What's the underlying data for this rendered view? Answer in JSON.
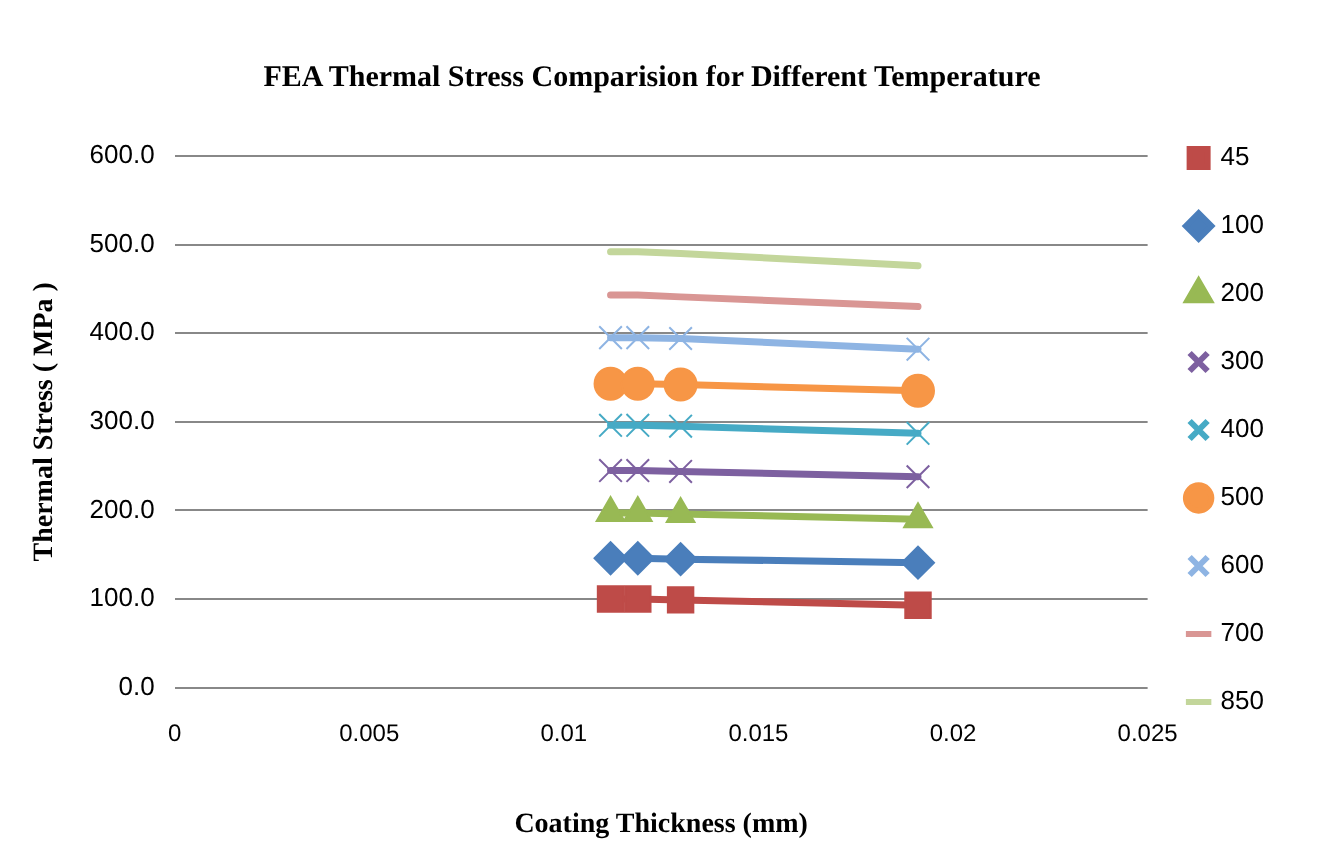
{
  "chart_data": {
    "type": "line",
    "title": "FEA Thermal Stress Comparision for Different Temperature",
    "xlabel": "Coating Thickness (mm)",
    "ylabel": "Thermal Stress ( MPa )",
    "x": [
      0.0112,
      0.0119,
      0.013,
      0.0191
    ],
    "xlim": [
      0,
      0.025
    ],
    "xticks": [
      0,
      0.005,
      0.01,
      0.015,
      0.02,
      0.025
    ],
    "ylim": [
      0,
      600
    ],
    "yticks": [
      {
        "value": 0,
        "label": "0.0"
      },
      {
        "value": 100,
        "label": "100.0"
      },
      {
        "value": 200,
        "label": "200.0"
      },
      {
        "value": 300,
        "label": "300.0"
      },
      {
        "value": 400,
        "label": "400.0"
      },
      {
        "value": 500,
        "label": "500.0"
      },
      {
        "value": 600,
        "label": "600.0"
      }
    ],
    "grid": "y",
    "legend": "right",
    "line_style": "solid",
    "series": [
      {
        "name": "45",
        "color": "#be4b48",
        "marker": "square",
        "values": [
          100,
          100,
          99,
          93
        ]
      },
      {
        "name": "100",
        "color": "#4a7ebb",
        "marker": "diamond",
        "values": [
          146,
          146,
          145,
          141
        ]
      },
      {
        "name": "200",
        "color": "#98b954",
        "marker": "triangle",
        "values": [
          197,
          197,
          196,
          190
        ]
      },
      {
        "name": "300",
        "color": "#7d60a0",
        "marker": "cross",
        "values": [
          245,
          245,
          244,
          238
        ]
      },
      {
        "name": "400",
        "color": "#46aac5",
        "marker": "cross",
        "values": [
          296,
          296,
          295,
          287
        ]
      },
      {
        "name": "500",
        "color": "#f79646",
        "marker": "circle",
        "values": [
          343,
          343,
          342,
          335
        ]
      },
      {
        "name": "600",
        "color": "#8eb4e3",
        "marker": "cross",
        "values": [
          395,
          395,
          394,
          382
        ]
      },
      {
        "name": "700",
        "color": "#d99694",
        "marker": "none",
        "values": [
          443,
          443,
          441,
          430
        ]
      },
      {
        "name": "850",
        "color": "#c3d69b",
        "marker": "none",
        "values": [
          492,
          492,
          490,
          476
        ]
      }
    ]
  }
}
